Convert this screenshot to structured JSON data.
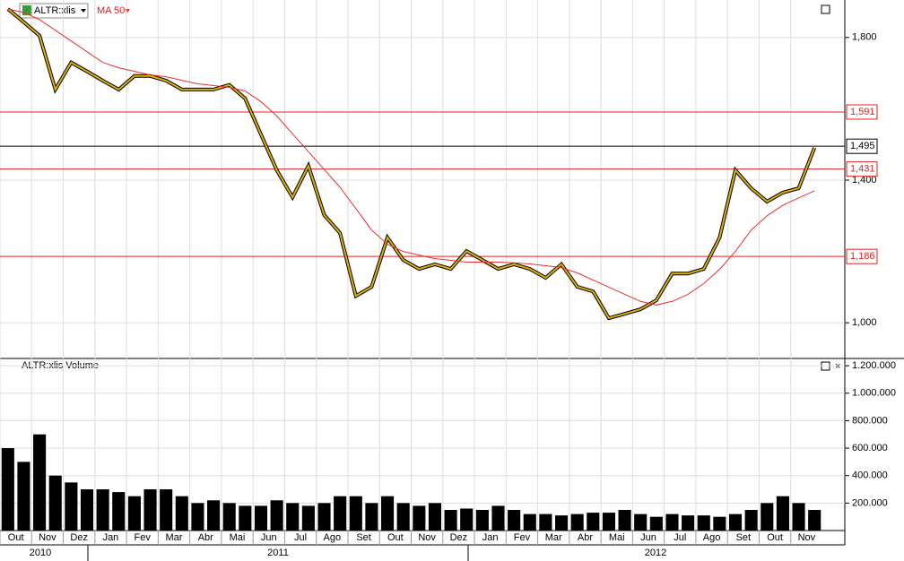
{
  "chart_data": [
    {
      "type": "line",
      "title": "ALTR:xlis",
      "indicator": "MA 50",
      "categories": [
        "Out",
        null,
        "Nov",
        null,
        "Dez",
        null,
        "Jan",
        null,
        "Fev",
        null,
        "Mar",
        null,
        "Abr",
        null,
        "Mai",
        null,
        "Jun",
        null,
        "Jul",
        null,
        "Ago",
        null,
        "Set",
        null,
        "Out",
        null,
        "Nov",
        null,
        "Dez",
        null,
        "Jan",
        null,
        "Fev",
        null,
        "Mar",
        null,
        "Abr",
        null,
        "Mai",
        null,
        "Jun",
        null,
        "Jul",
        null,
        "Ago",
        null,
        "Set",
        null,
        "Out",
        null,
        "Nov",
        null
      ],
      "years": [
        "2010",
        "2011",
        "2012"
      ],
      "series": [
        {
          "name": "ALTR:xlis",
          "color": "#e0b000",
          "values": [
            1880,
            1843,
            1805,
            1654,
            1730,
            1705,
            1679,
            1654,
            1692,
            1692,
            1679,
            1654,
            1654,
            1654,
            1667,
            1629,
            1528,
            1428,
            1352,
            1440,
            1302,
            1252,
            1075,
            1101,
            1239,
            1176,
            1151,
            1164,
            1151,
            1201,
            1176,
            1151,
            1164,
            1151,
            1126,
            1164,
            1101,
            1088,
            1013,
            1025,
            1038,
            1063,
            1138,
            1138,
            1151,
            1239,
            1428,
            1377,
            1340,
            1365,
            1377,
            1491
          ]
        },
        {
          "name": "MA 50",
          "color": "#e83030",
          "values": [
            1880,
            1870,
            1850,
            1820,
            1790,
            1760,
            1730,
            1715,
            1705,
            1695,
            1690,
            1680,
            1670,
            1665,
            1660,
            1650,
            1620,
            1580,
            1530,
            1480,
            1430,
            1380,
            1320,
            1260,
            1220,
            1200,
            1190,
            1180,
            1175,
            1170,
            1170,
            1170,
            1168,
            1165,
            1160,
            1155,
            1140,
            1120,
            1100,
            1080,
            1060,
            1050,
            1060,
            1080,
            1110,
            1150,
            1200,
            1260,
            1300,
            1330,
            1350,
            1370
          ]
        }
      ],
      "ylim": [
        900,
        1905
      ],
      "yticks": [
        {
          "value": 1000,
          "label": "1,000"
        },
        {
          "value": 1400,
          "label": "1,400"
        },
        {
          "value": 1800,
          "label": "1,800"
        }
      ],
      "levels": [
        {
          "value": 1591,
          "label": "1,591",
          "color": "#e02020"
        },
        {
          "value": 1495,
          "label": "1,495",
          "color": "#000000"
        },
        {
          "value": 1431,
          "label": "1,431",
          "color": "#e02020"
        },
        {
          "value": 1186,
          "label": "1,186",
          "color": "#e02020"
        }
      ],
      "grid": true
    },
    {
      "type": "bar",
      "title": "ALTR:xlis Volume",
      "color": "#000000",
      "values": [
        600000,
        500000,
        700000,
        400000,
        350000,
        300000,
        300000,
        280000,
        250000,
        300000,
        300000,
        250000,
        200000,
        220000,
        200000,
        180000,
        180000,
        220000,
        200000,
        180000,
        200000,
        250000,
        250000,
        200000,
        250000,
        200000,
        180000,
        200000,
        150000,
        160000,
        150000,
        180000,
        150000,
        120000,
        120000,
        110000,
        120000,
        130000,
        130000,
        150000,
        120000,
        100000,
        120000,
        110000,
        110000,
        100000,
        120000,
        150000,
        200000,
        250000,
        200000,
        150000
      ],
      "ylim": [
        0,
        1253000
      ],
      "yticks": [
        {
          "value": 200000,
          "label": "200.000"
        },
        {
          "value": 400000,
          "label": "400.000"
        },
        {
          "value": 600000,
          "label": "600.000"
        },
        {
          "value": 800000,
          "label": "800.000"
        },
        {
          "value": 1000000,
          "label": "1.000.000"
        },
        {
          "value": 1200000,
          "label": "1.200.000"
        }
      ],
      "grid": true
    }
  ]
}
